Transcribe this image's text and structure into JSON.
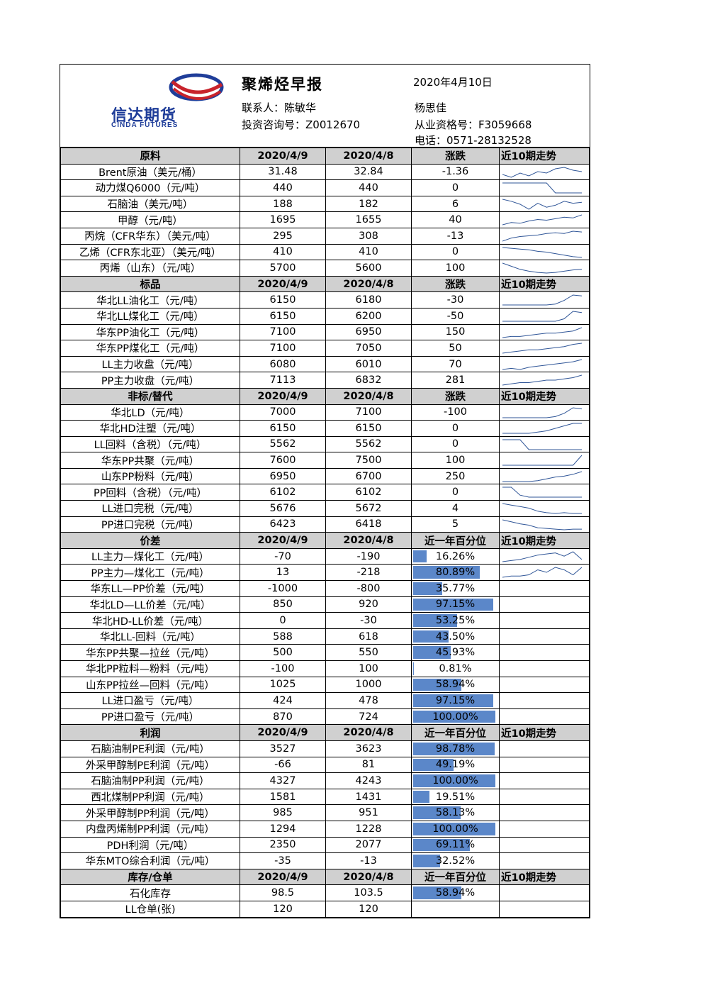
{
  "header": {
    "logo_cn": "信达期货",
    "logo_en": "CINDA FUTURES",
    "title": "聚烯烃早报",
    "date": "2020年4月10日",
    "contact": "联系人：陈敏华",
    "name2": "杨思佳",
    "qual1": "投资咨询号：Z0012670",
    "qual2": "从业资格号：F3059668",
    "phone": "电话：0571-28132528"
  },
  "accent_bar_color": "#5b87c9",
  "sections": [
    {
      "title": "原料",
      "col1": "2020/4/9",
      "col2": "2020/4/8",
      "col3": "涨跌",
      "col4": "近10期走势",
      "rows": [
        {
          "label": "Brent原油（美元/桶）",
          "v1": "31.48",
          "v2": "32.84",
          "v3": "-1.36",
          "spark": [
            30,
            28,
            31,
            29,
            32,
            31,
            34,
            35,
            33,
            32
          ]
        },
        {
          "label": "动力煤Q6000（元/吨）",
          "v1": "440",
          "v2": "440",
          "v3": "0",
          "spark": [
            50,
            50,
            50,
            50,
            50,
            50,
            40,
            40,
            40,
            40
          ]
        },
        {
          "label": "石脑油（美元/吨）",
          "v1": "188",
          "v2": "182",
          "v3": "6",
          "spark": [
            60,
            58,
            55,
            50,
            56,
            52,
            54,
            58,
            56,
            57
          ]
        },
        {
          "label": "甲醇（元/吨）",
          "v1": "1695",
          "v2": "1655",
          "v3": "40",
          "spark": [
            20,
            23,
            22,
            25,
            27,
            26,
            28,
            30,
            29,
            33
          ]
        },
        {
          "label": "丙烷（CFR华东）（美元/吨）",
          "v1": "295",
          "v2": "308",
          "v3": "-13",
          "spark": [
            20,
            24,
            26,
            27,
            28,
            30,
            31,
            30,
            33,
            32
          ]
        },
        {
          "label": "乙烯（CFR东北亚）（美元/吨）",
          "v1": "410",
          "v2": "410",
          "v3": "0",
          "spark": [
            50,
            49,
            48,
            47,
            45,
            44,
            42,
            40,
            38,
            37
          ]
        },
        {
          "label": "丙烯（山东）（元/吨）",
          "v1": "5700",
          "v2": "5600",
          "v3": "100",
          "spark": [
            60,
            55,
            50,
            47,
            45,
            44,
            45,
            47,
            49,
            50
          ]
        }
      ]
    },
    {
      "title": "标品",
      "col1": "2020/4/9",
      "col2": "2020/4/8",
      "col3": "涨跌",
      "col4": "近10期走势",
      "rows": [
        {
          "label": "华北LL油化工（元/吨）",
          "v1": "6150",
          "v2": "6180",
          "v3": "-30",
          "spark": [
            20,
            20,
            20,
            20,
            20,
            20,
            21,
            25,
            31,
            30
          ]
        },
        {
          "label": "华北LL煤化工（元/吨）",
          "v1": "6150",
          "v2": "6200",
          "v3": "-50",
          "spark": [
            20,
            20,
            20,
            20,
            20,
            20,
            20,
            22,
            28,
            27
          ]
        },
        {
          "label": "华东PP油化工（元/吨）",
          "v1": "7100",
          "v2": "6950",
          "v3": "150",
          "spark": [
            20,
            21,
            21,
            22,
            23,
            24,
            24,
            25,
            26,
            29
          ]
        },
        {
          "label": "华东PP煤化工（元/吨）",
          "v1": "7100",
          "v2": "7050",
          "v3": "50",
          "spark": [
            20,
            21,
            22,
            23,
            23,
            24,
            25,
            26,
            28,
            29
          ]
        },
        {
          "label": "LL主力收盘（元/吨）",
          "v1": "6080",
          "v2": "6010",
          "v3": "70",
          "spark": [
            20,
            21,
            20,
            22,
            23,
            24,
            25,
            26,
            27,
            29
          ]
        },
        {
          "label": "PP主力收盘（元/吨）",
          "v1": "7113",
          "v2": "6832",
          "v3": "281",
          "spark": [
            20,
            21,
            22,
            22,
            23,
            24,
            24,
            25,
            26,
            28
          ]
        }
      ]
    },
    {
      "title": "非标/替代",
      "col1": "2020/4/9",
      "col2": "2020/4/8",
      "col3": "涨跌",
      "col4": "近10期走势",
      "rows": [
        {
          "label": "华北LD（元/吨）",
          "v1": "7000",
          "v2": "7100",
          "v3": "-100",
          "spark": [
            20,
            20,
            20,
            20,
            20,
            20,
            21,
            24,
            29,
            28
          ]
        },
        {
          "label": "华北HD注塑（元/吨）",
          "v1": "6150",
          "v2": "6150",
          "v3": "0",
          "spark": [
            20,
            20,
            20,
            20,
            21,
            22,
            24,
            26,
            28,
            28
          ]
        },
        {
          "label": "LL回料（含税）（元/吨）",
          "v1": "5562",
          "v2": "5562",
          "v3": "0",
          "spark": [
            40,
            40,
            40,
            30,
            30,
            30,
            30,
            30,
            30,
            30
          ]
        },
        {
          "label": "华东PP共聚（元/吨）",
          "v1": "7600",
          "v2": "7500",
          "v3": "100",
          "spark": [
            20,
            20,
            20,
            20,
            20,
            20,
            20,
            20,
            20,
            28
          ]
        },
        {
          "label": "山东PP粉料（元/吨）",
          "v1": "6950",
          "v2": "6700",
          "v3": "250",
          "spark": [
            20,
            20,
            20,
            20,
            21,
            23,
            25,
            26,
            28,
            31
          ]
        },
        {
          "label": "PP回料（含税）（元/吨）",
          "v1": "6102",
          "v2": "6102",
          "v3": "0",
          "spark": [
            40,
            40,
            32,
            30,
            30,
            30,
            30,
            30,
            30,
            30
          ]
        },
        {
          "label": "LL进口完税（元/吨）",
          "v1": "5676",
          "v2": "5672",
          "v3": "4",
          "spark": [
            40,
            38,
            36,
            34,
            30,
            28,
            27,
            28,
            27,
            27
          ]
        },
        {
          "label": "PP进口完税（元/吨）",
          "v1": "6423",
          "v2": "6418",
          "v3": "5",
          "spark": [
            40,
            37,
            34,
            32,
            28,
            27,
            26,
            25,
            26,
            26
          ]
        }
      ]
    },
    {
      "title": "价差",
      "col1": "2020/4/9",
      "col2": "2020/4/8",
      "col3": "近一年百分位",
      "col4": "近10期走势",
      "rows": [
        {
          "label": "LL主力—煤化工（元/吨）",
          "v1": "-70",
          "v2": "-190",
          "pct": "16.26%",
          "frac": 0.1626,
          "spark": [
            20,
            21,
            22,
            24,
            26,
            27,
            28,
            25,
            29,
            22
          ]
        },
        {
          "label": "PP主力—煤化工（元/吨）",
          "v1": "13",
          "v2": "-218",
          "pct": "80.89%",
          "frac": 0.8089,
          "spark": [
            20,
            21,
            21,
            22,
            26,
            24,
            28,
            26,
            22,
            28
          ]
        },
        {
          "label": "华东LL—PP价差（元/吨）",
          "v1": "-1000",
          "v2": "-800",
          "pct": "35.77%",
          "frac": 0.3577
        },
        {
          "label": "华北LD—LL价差（元/吨）",
          "v1": "850",
          "v2": "920",
          "pct": "97.15%",
          "frac": 0.9715
        },
        {
          "label": "华北HD-LL价差（元/吨）",
          "v1": "0",
          "v2": "-30",
          "pct": "53.25%",
          "frac": 0.5325
        },
        {
          "label": "华北LL-回料（元/吨）",
          "v1": "588",
          "v2": "618",
          "pct": "43.50%",
          "frac": 0.435
        },
        {
          "label": "华东PP共聚—拉丝（元/吨）",
          "v1": "500",
          "v2": "550",
          "pct": "45.93%",
          "frac": 0.4593
        },
        {
          "label": "华北PP粒料—粉料（元/吨）",
          "v1": "-100",
          "v2": "100",
          "pct": "0.81%",
          "frac": 0.0081
        },
        {
          "label": "山东PP拉丝—回料（元/吨）",
          "v1": "1025",
          "v2": "1000",
          "pct": "58.94%",
          "frac": 0.5894
        },
        {
          "label": "LL进口盈亏（元/吨）",
          "v1": "424",
          "v2": "478",
          "pct": "97.15%",
          "frac": 0.9715
        },
        {
          "label": "PP进口盈亏（元/吨）",
          "v1": "870",
          "v2": "724",
          "pct": "100.00%",
          "frac": 1.0
        }
      ]
    },
    {
      "title": "利润",
      "col1": "2020/4/9",
      "col2": "2020/4/8",
      "col3": "近一年百分位",
      "col4": "近10期走势",
      "rows": [
        {
          "label": "石脑油制PE利润（元/吨）",
          "v1": "3527",
          "v2": "3623",
          "pct": "98.78%",
          "frac": 0.9878
        },
        {
          "label": "外采甲醇制PE利润（元/吨）",
          "v1": "-66",
          "v2": "81",
          "pct": "49.19%",
          "frac": 0.4919
        },
        {
          "label": "石脑油制PP利润（元/吨）",
          "v1": "4327",
          "v2": "4243",
          "pct": "100.00%",
          "frac": 1.0
        },
        {
          "label": "西北煤制PP利润（元/吨）",
          "v1": "1581",
          "v2": "1431",
          "pct": "19.51%",
          "frac": 0.1951
        },
        {
          "label": "外采甲醇制PP利润（元/吨）",
          "v1": "985",
          "v2": "951",
          "pct": "58.13%",
          "frac": 0.5813
        },
        {
          "label": "内盘丙烯制PP利润（元/吨）",
          "v1": "1294",
          "v2": "1228",
          "pct": "100.00%",
          "frac": 1.0
        },
        {
          "label": "PDH利润（元/吨）",
          "v1": "2350",
          "v2": "2077",
          "pct": "69.11%",
          "frac": 0.6911
        },
        {
          "label": "华东MTO综合利润（元/吨）",
          "v1": "-35",
          "v2": "-13",
          "pct": "32.52%",
          "frac": 0.3252
        }
      ]
    },
    {
      "title": "库存/仓单",
      "col1": "2020/4/9",
      "col2": "2020/4/8",
      "col3": "近一年百分位",
      "col4": "近10期走势",
      "rows": [
        {
          "label": "石化库存",
          "v1": "98.5",
          "v2": "103.5",
          "pct": "58.94%",
          "frac": 0.5894
        },
        {
          "label": "LL仓单(张)",
          "v1": "120",
          "v2": "120",
          "pct": "",
          "frac": 0
        }
      ]
    }
  ]
}
